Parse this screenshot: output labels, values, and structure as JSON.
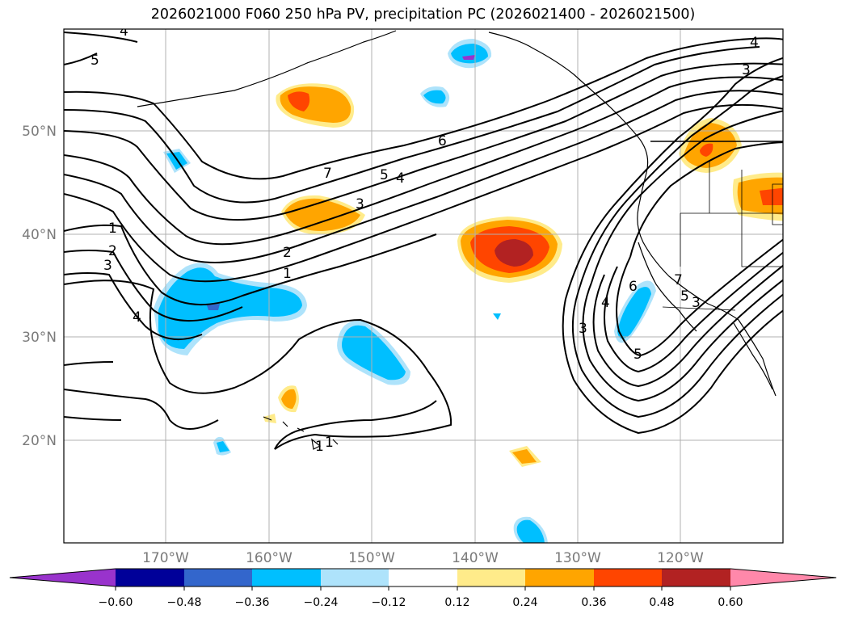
{
  "title": "2026021000 F060 250 hPa PV, precipitation PC (2026021400 - 2026021500)",
  "latitude_labels": [
    "50°N",
    "40°N",
    "30°N",
    "20°N"
  ],
  "longitude_labels": [
    "170°W",
    "160°W",
    "150°W",
    "140°W",
    "130°W",
    "120°W"
  ],
  "contour_labels": [
    "5",
    "4",
    "4",
    "3",
    "6",
    "7",
    "5",
    "4",
    "3",
    "1",
    "2",
    "3",
    "2",
    "1",
    "4",
    "1",
    "1",
    "3",
    "4",
    "6",
    "7",
    "5",
    "5",
    "3"
  ],
  "colorbar": {
    "colors": [
      "#9933cc",
      "#000099",
      "#3366cc",
      "#00bfff",
      "#aee3fb",
      "#ffffff",
      "#ffeb8a",
      "#ffa500",
      "#ff4500",
      "#b22222",
      "#ff88aa"
    ],
    "ticks": [
      "−0.60",
      "−0.48",
      "−0.36",
      "−0.24",
      "−0.12",
      "0.12",
      "0.24",
      "0.36",
      "0.48",
      "0.60"
    ]
  }
}
